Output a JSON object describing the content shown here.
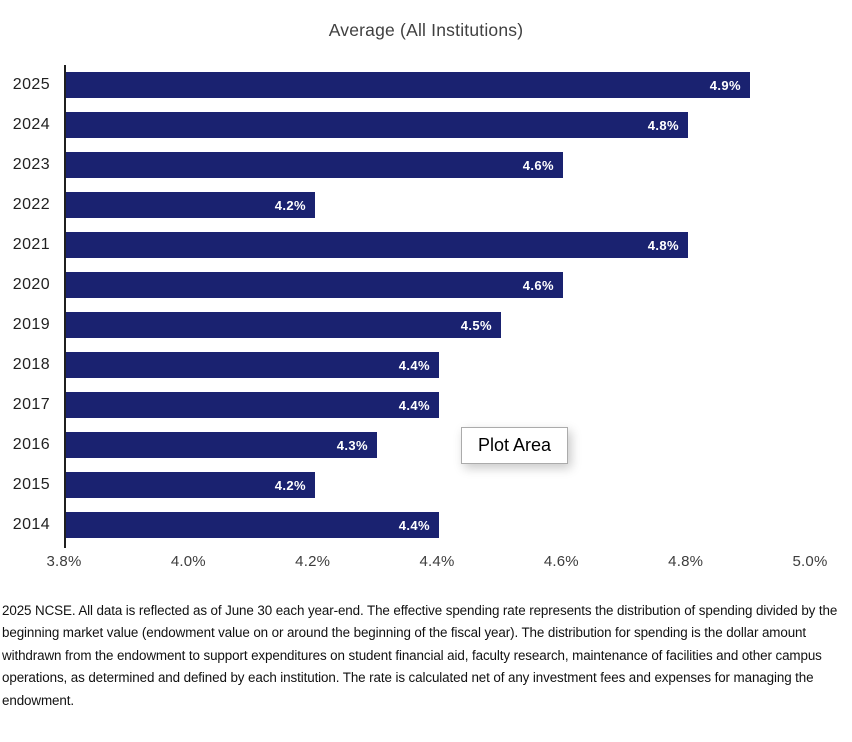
{
  "chart": {
    "title": "Average (All Institutions)"
  },
  "chart_data": {
    "type": "bar",
    "orientation": "horizontal",
    "title": "Average (All Institutions)",
    "categories": [
      "2025",
      "2024",
      "2023",
      "2022",
      "2021",
      "2020",
      "2019",
      "2018",
      "2017",
      "2016",
      "2015",
      "2014"
    ],
    "values": [
      4.9,
      4.8,
      4.6,
      4.2,
      4.8,
      4.6,
      4.5,
      4.4,
      4.4,
      4.3,
      4.2,
      4.4
    ],
    "labels": [
      "4.9%",
      "4.8%",
      "4.6%",
      "4.2%",
      "4.8%",
      "4.6%",
      "4.5%",
      "4.4%",
      "4.4%",
      "4.3%",
      "4.2%",
      "4.4%"
    ],
    "xlabel": "",
    "ylabel": "",
    "x_ticks": [
      "3.8%",
      "4.0%",
      "4.2%",
      "4.4%",
      "4.6%",
      "4.8%",
      "5.0%"
    ],
    "xlim": [
      3.8,
      5.0
    ],
    "grid": false,
    "legend": false,
    "bar_color": "#1A2270",
    "value_label_color": "#FFFFFF",
    "axis_line_color": "#1F1F1F"
  },
  "tooltip": {
    "label": "Plot Area"
  },
  "footnote": {
    "text": "2025 NCSE. All data is reflected as of June 30 each year-end. The effective spending rate represents the distribution of spending divided by the beginning market value (endowment value on or around the beginning of the fiscal year). The distribution for spending is the dollar amount withdrawn from the endowment to support expenditures on student financial aid, faculty research, maintenance of facilities and other campus operations, as determined and defined by each institution. The rate is calculated net of any investment fees and expenses for managing the endowment."
  }
}
